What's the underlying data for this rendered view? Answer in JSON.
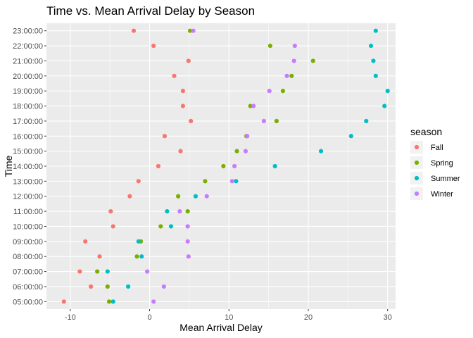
{
  "chart_data": {
    "type": "scatter",
    "title": "Time vs. Mean Arrival Delay by Season",
    "xlabel": "Mean Arrival Delay",
    "ylabel": "Time",
    "xlim": [
      -13,
      31
    ],
    "xticks": [
      -10,
      0,
      10,
      20,
      30
    ],
    "grid": true,
    "legend": {
      "title": "season",
      "position": "right"
    },
    "categories": [
      "05:00:00",
      "06:00:00",
      "07:00:00",
      "08:00:00",
      "09:00:00",
      "10:00:00",
      "11:00:00",
      "12:00:00",
      "13:00:00",
      "14:00:00",
      "15:00:00",
      "16:00:00",
      "17:00:00",
      "18:00:00",
      "19:00:00",
      "20:00:00",
      "21:00:00",
      "22:00:00",
      "23:00:00"
    ],
    "series": [
      {
        "name": "Fall",
        "color": "#F8766D",
        "values": [
          -10.8,
          -7.4,
          -8.8,
          -6.3,
          -8.1,
          -4.6,
          -4.9,
          -2.5,
          -1.4,
          1.1,
          3.9,
          1.9,
          5.2,
          4.2,
          4.2,
          3.1,
          4.9,
          0.5,
          -2.0
        ]
      },
      {
        "name": "Spring",
        "color": "#7CAE00",
        "values": [
          -5.1,
          -5.3,
          -6.6,
          -1.6,
          -1.1,
          1.4,
          4.8,
          3.6,
          7.0,
          9.3,
          11.0,
          12.2,
          16.0,
          12.7,
          16.8,
          17.9,
          20.6,
          15.2,
          5.1
        ]
      },
      {
        "name": "Summer",
        "color": "#00BFC4",
        "values": [
          -4.6,
          -2.7,
          -5.3,
          -1.0,
          -1.4,
          2.7,
          2.2,
          5.8,
          10.9,
          15.8,
          21.6,
          25.4,
          27.3,
          29.6,
          30.0,
          28.5,
          28.2,
          27.9,
          28.5
        ]
      },
      {
        "name": "Winter",
        "color": "#C77CFF",
        "values": [
          0.5,
          1.8,
          -0.3,
          4.9,
          4.8,
          4.8,
          3.8,
          7.2,
          10.4,
          10.7,
          12.1,
          12.3,
          14.4,
          13.1,
          15.1,
          17.3,
          18.2,
          18.3,
          5.5
        ]
      }
    ]
  }
}
